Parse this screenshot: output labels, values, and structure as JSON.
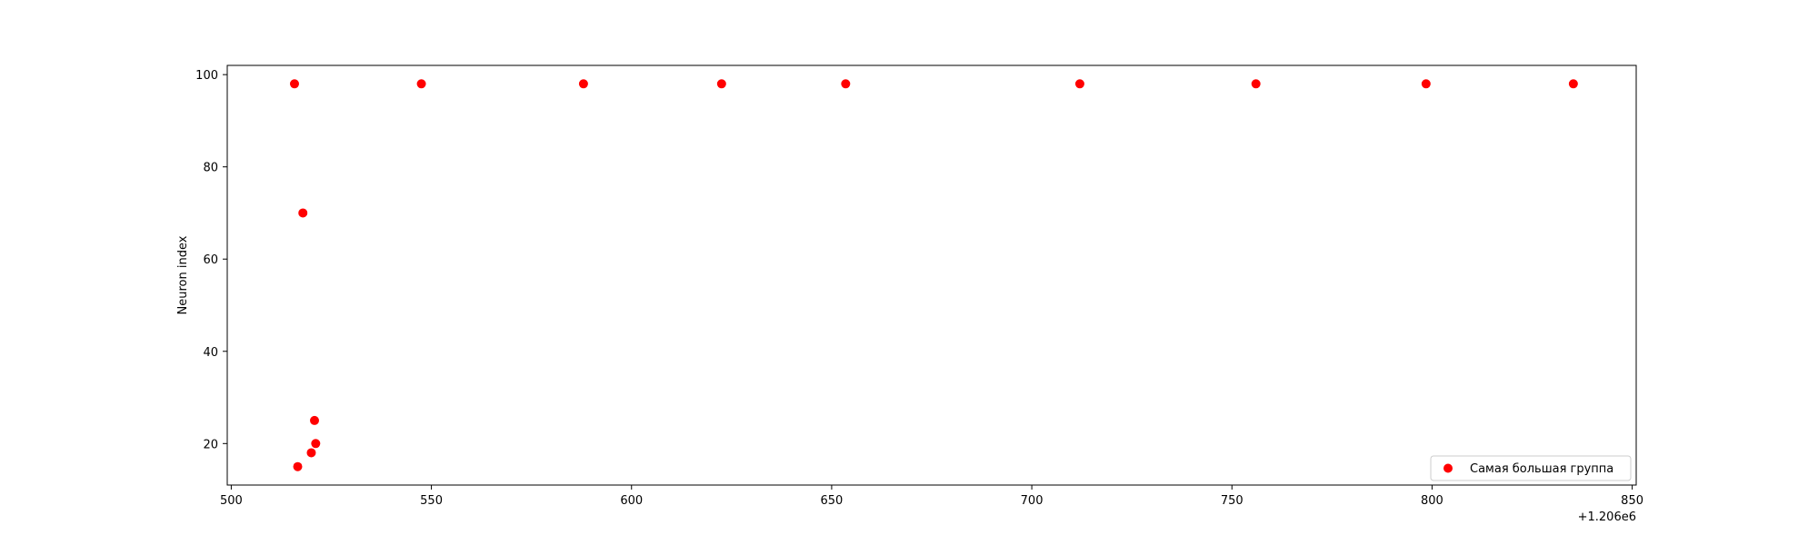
{
  "chart_data": {
    "type": "scatter",
    "title": "",
    "xlabel": "",
    "ylabel": "Neuron index",
    "x_offset_label": "+1.206e6",
    "xlim": [
      499,
      851
    ],
    "ylim": [
      11,
      102
    ],
    "xticks": [
      500,
      550,
      600,
      650,
      700,
      750,
      800,
      850
    ],
    "yticks": [
      20,
      40,
      60,
      80,
      100
    ],
    "grid": false,
    "legend_position": "lower right",
    "series": [
      {
        "name": "Самая большая группа",
        "color": "#ff0000",
        "marker": "circle",
        "points": [
          {
            "x": 515.8,
            "y": 98
          },
          {
            "x": 547.5,
            "y": 98
          },
          {
            "x": 588.0,
            "y": 98
          },
          {
            "x": 622.5,
            "y": 98
          },
          {
            "x": 653.5,
            "y": 98
          },
          {
            "x": 712.0,
            "y": 98
          },
          {
            "x": 756.0,
            "y": 98
          },
          {
            "x": 798.5,
            "y": 98
          },
          {
            "x": 835.3,
            "y": 98
          },
          {
            "x": 517.9,
            "y": 70
          },
          {
            "x": 520.8,
            "y": 25
          },
          {
            "x": 521.1,
            "y": 20
          },
          {
            "x": 520.0,
            "y": 18
          },
          {
            "x": 516.6,
            "y": 15
          }
        ]
      }
    ]
  }
}
